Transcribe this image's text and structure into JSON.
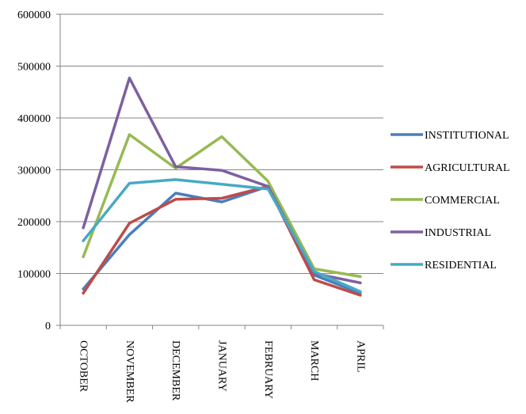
{
  "chart_data": {
    "type": "line",
    "categories": [
      "OCTOBER",
      "NOVEMBER",
      "DECEMBER",
      "JANUARY",
      "FEBRUARY",
      "MARCH",
      "APRIL"
    ],
    "ylim": [
      0,
      600000
    ],
    "yticks": [
      0,
      100000,
      200000,
      300000,
      400000,
      500000,
      600000
    ],
    "grid": "horizontal",
    "legend_position": "right",
    "series": [
      {
        "name": "INSTITUTIONAL",
        "color": "#4a7ebb",
        "values": [
          70000,
          175000,
          255000,
          238000,
          268000,
          97000,
          62000
        ]
      },
      {
        "name": "AGRICULTURAL",
        "color": "#be4b48",
        "values": [
          62000,
          197000,
          243000,
          245000,
          268000,
          88000,
          58000
        ]
      },
      {
        "name": "COMMERCIAL",
        "color": "#98b954",
        "values": [
          132000,
          368000,
          303000,
          364000,
          278000,
          109000,
          94000
        ]
      },
      {
        "name": "INDUSTRIAL",
        "color": "#7d60a0",
        "values": [
          188000,
          477000,
          306000,
          299000,
          268000,
          100000,
          82000
        ]
      },
      {
        "name": "RESIDENTIAL",
        "color": "#46aac5",
        "values": [
          163000,
          274000,
          281000,
          272000,
          263000,
          104000,
          65000
        ]
      }
    ]
  }
}
